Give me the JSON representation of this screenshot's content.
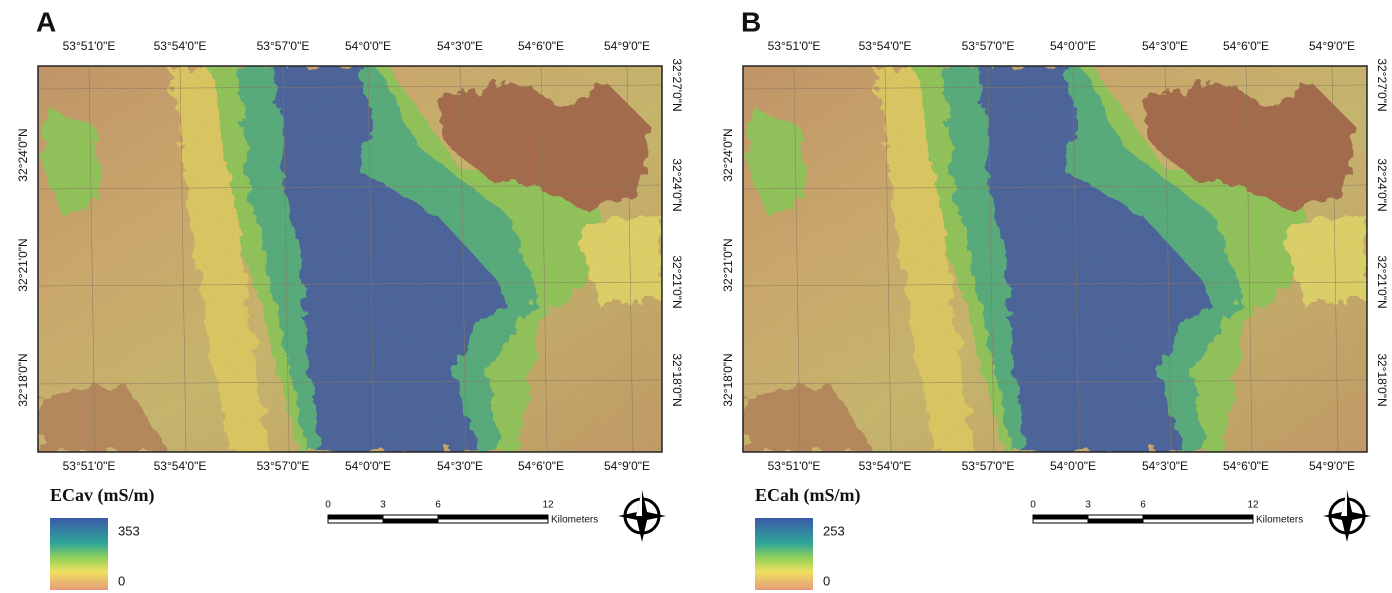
{
  "panels": [
    {
      "label": "A",
      "top_labels": [
        "53°51'0\"E",
        "53°54'0\"E",
        "53°57'0\"E",
        "54°0'0\"E",
        "54°3'0\"E",
        "54°6'0\"E",
        "54°9'0\"E"
      ],
      "bottom_labels": [
        "53°51'0\"E",
        "53°54'0\"E",
        "53°57'0\"E",
        "54°0'0\"E",
        "54°3'0\"E",
        "54°6'0\"E",
        "54°9'0\"E"
      ],
      "left_labels": [
        "32°24'0\"N",
        "32°21'0\"N",
        "32°18'0\"N"
      ],
      "right_labels": [
        "32°27'0\"N",
        "32°24'0\"N",
        "32°21'0\"N",
        "32°18'0\"N"
      ],
      "legend": {
        "title": "ECav (mS/m)",
        "max": 353,
        "min": 0
      },
      "scale_bar": {
        "ticks": [
          0,
          3,
          6,
          12
        ],
        "unit": "Kilometers"
      }
    },
    {
      "label": "B",
      "top_labels": [
        "53°51'0\"E",
        "53°54'0\"E",
        "53°57'0\"E",
        "54°0'0\"E",
        "54°3'0\"E",
        "54°6'0\"E",
        "54°9'0\"E"
      ],
      "bottom_labels": [
        "53°51'0\"E",
        "53°54'0\"E",
        "53°57'0\"E",
        "54°0'0\"E",
        "54°3'0\"E",
        "54°6'0\"E",
        "54°9'0\"E"
      ],
      "left_labels": [
        "32°24'0\"N",
        "32°21'0\"N",
        "32°18'0\"N"
      ],
      "right_labels": [
        "32°27'0\"N",
        "32°24'0\"N",
        "32°21'0\"N",
        "32°18'0\"N"
      ],
      "legend": {
        "title": "ECah (mS/m)",
        "max": 253,
        "min": 0
      },
      "scale_bar": {
        "ticks": [
          0,
          3,
          6,
          12
        ],
        "unit": "Kilometers"
      }
    }
  ]
}
